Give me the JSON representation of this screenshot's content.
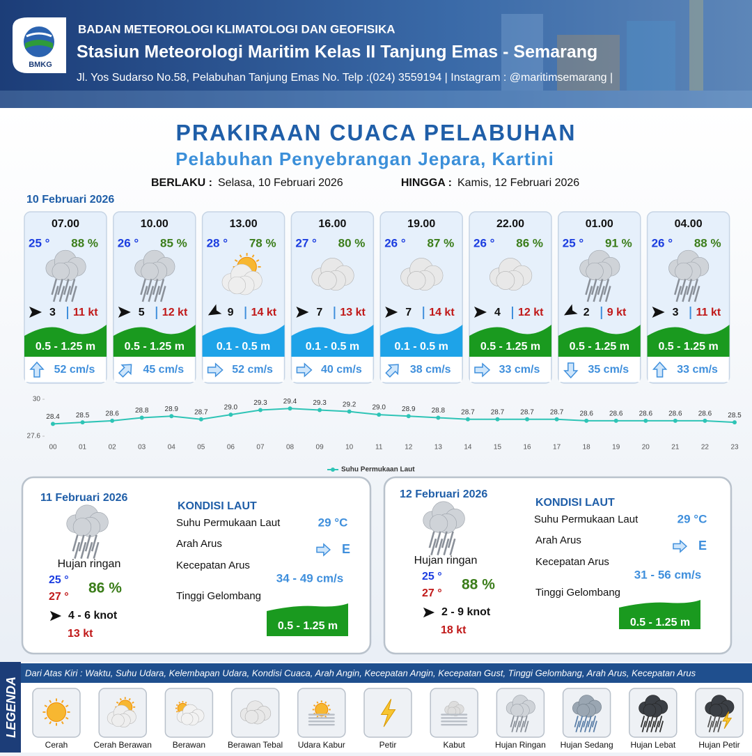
{
  "header": {
    "logo": "BMKG",
    "agency": "BADAN METEOROLOGI KLIMATOLOGI DAN GEOFISIKA",
    "station": "Stasiun Meteorologi Maritim Kelas II Tanjung Emas - Semarang",
    "address": "Jl. Yos Sudarso No.58, Pelabuhan Tanjung Emas No. Telp :(024) 3559194 | Instagram : @maritimsemarang |"
  },
  "title": "PRAKIRAAN CUACA PELABUHAN",
  "subtitle": "Pelabuhan Penyebrangan Jepara, Kartini",
  "validity": {
    "from_label": "BERLAKU :",
    "from": "Selasa, 10 Februari 2026",
    "to_label": "HINGGA :",
    "to": "Kamis, 12 Februari 2026"
  },
  "day1_date": "10 Februari 2026",
  "forecasts": [
    {
      "time": "07.00",
      "temp": "25 °",
      "humidity": "88 %",
      "condition": "Hujan Ringan",
      "wind_angle": 0,
      "wind": "3",
      "gust": "11 kt",
      "wave": "0.5 - 1.25 m",
      "wave_color": "#1a9a1f",
      "current_angle": 0,
      "current": "52 cm/s"
    },
    {
      "time": "10.00",
      "temp": "26 °",
      "humidity": "85 %",
      "condition": "Hujan Ringan",
      "wind_angle": 0,
      "wind": "5",
      "gust": "12 kt",
      "wave": "0.5 - 1.25 m",
      "wave_color": "#1a9a1f",
      "current_angle": 45,
      "current": "45 cm/s"
    },
    {
      "time": "13.00",
      "temp": "28 °",
      "humidity": "78 %",
      "condition": "Cerah Berawan",
      "wind_angle": 150,
      "wind": "9",
      "gust": "14 kt",
      "wave": "0.1 - 0.5 m",
      "wave_color": "#1ea3e8",
      "current_angle": 90,
      "current": "52 cm/s"
    },
    {
      "time": "16.00",
      "temp": "27 °",
      "humidity": "80 %",
      "condition": "Berawan Tebal",
      "wind_angle": 0,
      "wind": "7",
      "gust": "13 kt",
      "wave": "0.1 - 0.5 m",
      "wave_color": "#1ea3e8",
      "current_angle": 90,
      "current": "40 cm/s"
    },
    {
      "time": "19.00",
      "temp": "26 °",
      "humidity": "87 %",
      "condition": "Berawan Tebal",
      "wind_angle": 0,
      "wind": "7",
      "gust": "14 kt",
      "wave": "0.1 - 0.5 m",
      "wave_color": "#1ea3e8",
      "current_angle": 45,
      "current": "38 cm/s"
    },
    {
      "time": "22.00",
      "temp": "26 °",
      "humidity": "86 %",
      "condition": "Berawan Tebal",
      "wind_angle": 0,
      "wind": "4",
      "gust": "12 kt",
      "wave": "0.5 - 1.25 m",
      "wave_color": "#1a9a1f",
      "current_angle": 90,
      "current": "33 cm/s"
    },
    {
      "time": "01.00",
      "temp": "25 °",
      "humidity": "91 %",
      "condition": "Hujan Ringan",
      "wind_angle": 150,
      "wind": "2",
      "gust": "9 kt",
      "wave": "0.5 - 1.25 m",
      "wave_color": "#1a9a1f",
      "current_angle": 180,
      "current": "35 cm/s"
    },
    {
      "time": "04.00",
      "temp": "26 °",
      "humidity": "88 %",
      "condition": "Hujan Ringan",
      "wind_angle": 0,
      "wind": "3",
      "gust": "11 kt",
      "wave": "0.5 - 1.25 m",
      "wave_color": "#1a9a1f",
      "current_angle": 0,
      "current": "33 cm/s"
    }
  ],
  "chart_data": {
    "type": "line",
    "categories": [
      "00",
      "01",
      "02",
      "03",
      "04",
      "05",
      "06",
      "07",
      "08",
      "09",
      "10",
      "11",
      "12",
      "13",
      "14",
      "15",
      "16",
      "17",
      "18",
      "19",
      "20",
      "21",
      "22",
      "23"
    ],
    "series": [
      {
        "name": "Suhu Permukaan Laut",
        "color": "#2ec4b6",
        "values": [
          28.4,
          28.5,
          28.6,
          28.8,
          28.9,
          28.7,
          29.0,
          29.3,
          29.4,
          29.3,
          29.2,
          29.0,
          28.9,
          28.8,
          28.7,
          28.7,
          28.7,
          28.7,
          28.6,
          28.6,
          28.6,
          28.6,
          28.6,
          28.5
        ],
        "value_labels": [
          "28.4",
          "28.5",
          "28.6",
          "28.8",
          "28.9",
          "28.7",
          "29.0",
          "29.3",
          "29.4",
          "29.3",
          "29.2",
          "29.0",
          "28.9",
          "28.8",
          "28.7",
          "28.7",
          "28.7",
          "28.7",
          "28.6",
          "28.6",
          "28.6",
          "28.6",
          "28.6",
          "28.5"
        ]
      }
    ],
    "ylim": [
      27.6,
      30
    ],
    "yticks": [
      27.6,
      30
    ]
  },
  "days": [
    {
      "date": "11 Februari 2026",
      "condition": "Hujan ringan",
      "temp_min": "25 °",
      "temp_max": "27 °",
      "humidity": "86 %",
      "wind": "4  - 6 knot",
      "gust": "13 kt",
      "sea_heading": "KONDISI LAUT",
      "sst_label": "Suhu Permukaan Laut",
      "sst": "29 °C",
      "current_dir_label": "Arah Arus",
      "current_dir": "E",
      "current_speed_label": "Kecepatan Arus",
      "current_speed": "34 - 49 cm/s",
      "wave_label": "Tinggi Gelombang",
      "wave": "0.5 - 1.25 m"
    },
    {
      "date": "12 Februari 2026",
      "condition": "Hujan ringan",
      "temp_min": "25 °",
      "temp_max": "27 °",
      "humidity": "88 %",
      "wind": "2 - 9 knot",
      "gust": "18 kt",
      "sea_heading": "KONDISI LAUT",
      "sst_label": "Suhu Permukaan Laut",
      "sst": "29 °C",
      "current_dir_label": "Arah Arus",
      "current_dir": "E",
      "current_speed_label": "Kecepatan Arus",
      "current_speed": "31 - 56 cm/s",
      "wave_label": "Tinggi Gelombang",
      "wave": "0.5 - 1.25 m"
    }
  ],
  "legend": {
    "heading": "LEGENDA",
    "description": "Dari Atas Kiri : Waktu, Suhu Udara, Kelembapan Udara, Kondisi Cuaca, Arah Angin, Kecepatan Angin, Kecepatan Gust, Tinggi Gelombang, Arah Arus, Kecepatan Arus",
    "items": [
      "Cerah",
      "Cerah Berawan",
      "Berawan",
      "Berawan Tebal",
      "Udara Kabur",
      "Petir",
      "Kabut",
      "Hujan Ringan",
      "Hujan Sedang",
      "Hujan Lebat",
      "Hujan Petir"
    ]
  }
}
